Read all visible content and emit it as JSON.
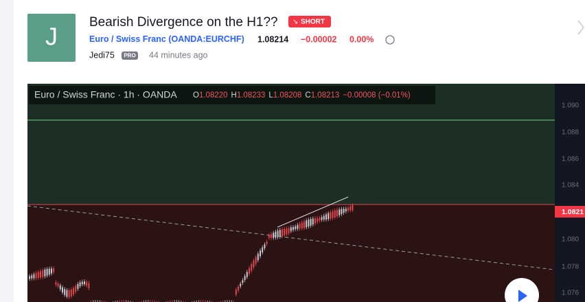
{
  "header": {
    "avatar": "J",
    "title": "Bearish Divergence on the H1??",
    "badge": "SHORT",
    "symbol": "Euro / Swiss Franc",
    "ticker": "(OANDA:EURCHF)",
    "price": "1.08214",
    "change": "−0.00002",
    "change_pct": "0.00%",
    "author": "Jedi75",
    "author_tag": "PRO",
    "time": "44 minutes ago"
  },
  "chart": {
    "legend": "Euro / Swiss Franc · 1h · OANDA",
    "open_label": "O",
    "open": "1.08220",
    "high_label": "H",
    "high": "1.08233",
    "low_label": "L",
    "low": "1.08208",
    "close_label": "C",
    "close": "1.08213",
    "change": "−0.00008 (−0.01%)",
    "axis_labels": [
      "1.090",
      "1.088",
      "1.086",
      "1.084",
      "1.080",
      "1.078",
      "1.076"
    ],
    "last_price": "1.0821"
  }
}
